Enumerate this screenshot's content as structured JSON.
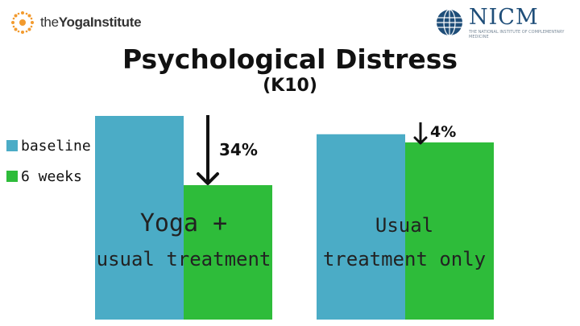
{
  "logos": {
    "left_text_a": "the",
    "left_text_b": "YogaInstitute",
    "right_name": "NICM",
    "right_sub": "THE NATIONAL INSTITUTE OF COMPLEMENTARY MEDICINE"
  },
  "colors": {
    "baseline": "#4bacc6",
    "six_weeks": "#2ebc3a",
    "text": "#111111"
  },
  "chart_data": {
    "type": "bar",
    "title": "Psychological Distress",
    "subtitle": "(K10)",
    "xlabel": "",
    "ylabel": "",
    "legend_position": "left",
    "categories": [
      "Yoga + usual treatment",
      "Usual treatment only"
    ],
    "category_labels": [
      {
        "line1": "Yoga +",
        "line2": "usual treatment"
      },
      {
        "line1": "Usual",
        "line2": "treatment only"
      }
    ],
    "series": [
      {
        "name": "baseline",
        "values": [
          100,
          91
        ]
      },
      {
        "name": "6 weeks",
        "values": [
          66,
          87
        ]
      }
    ],
    "annotations": [
      "34%",
      "4%"
    ],
    "ylim": [
      0,
      100
    ],
    "grid": false
  }
}
